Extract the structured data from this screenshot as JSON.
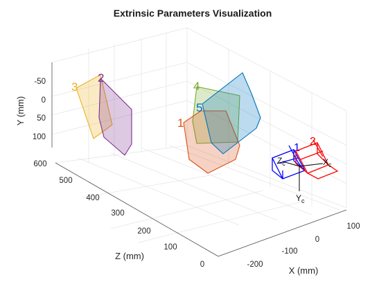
{
  "chart_data": {
    "type": "3d-extrinsics",
    "title": "Extrinsic Parameters Visualization",
    "axes": {
      "x": {
        "label": "X (mm)",
        "ticks": [
          "-200",
          "-100",
          "0",
          "100"
        ]
      },
      "y": {
        "label": "Y (mm)",
        "ticks": [
          "-50",
          "0",
          "50",
          "100"
        ]
      },
      "z": {
        "label": "Z (mm)",
        "ticks": [
          "0",
          "100",
          "200",
          "300",
          "400",
          "500",
          "600"
        ]
      }
    },
    "grid": true,
    "planes": [
      {
        "id": "1",
        "color": "#d95319"
      },
      {
        "id": "2",
        "color": "#7e2f8e"
      },
      {
        "id": "3",
        "color": "#edb120"
      },
      {
        "id": "4",
        "color": "#77ac30"
      },
      {
        "id": "5",
        "color": "#0072bd"
      }
    ],
    "cameras": [
      {
        "id": "1",
        "color": "#0000ff"
      },
      {
        "id": "2",
        "color": "#ff0000"
      }
    ],
    "camera_axis_labels": {
      "x": "X",
      "y": "Y",
      "z": "Z",
      "subscript": "c"
    }
  }
}
